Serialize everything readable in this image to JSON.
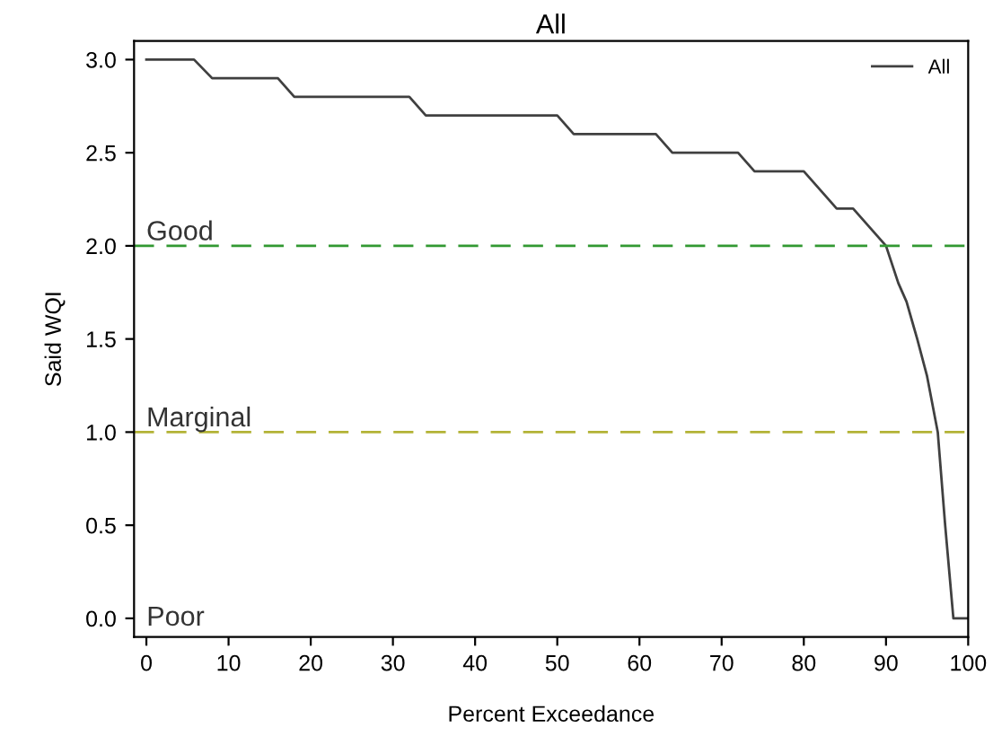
{
  "chart_data": {
    "type": "line",
    "title": "All",
    "xlabel": "Percent Exceedance",
    "ylabel": "Said WQI",
    "series": [
      {
        "name": "All",
        "color": "#404040",
        "x": [
          0,
          5.8,
          8,
          16,
          18,
          32,
          34,
          50,
          52,
          62,
          64,
          72,
          74,
          80,
          84,
          86,
          88,
          90,
          91.5,
          92.5,
          93.8,
          95,
          96.3,
          97.2,
          98.2,
          100
        ],
        "values": [
          3.0,
          3.0,
          2.9,
          2.9,
          2.8,
          2.8,
          2.7,
          2.7,
          2.6,
          2.6,
          2.5,
          2.5,
          2.4,
          2.4,
          2.2,
          2.2,
          2.1,
          2.0,
          1.8,
          1.7,
          1.5,
          1.3,
          1.0,
          0.5,
          0.0,
          0.0
        ]
      }
    ],
    "ref_lines": [
      {
        "axis": "y",
        "value": 2.0,
        "label": "Good",
        "color": "#339933",
        "line_style": "dashed"
      },
      {
        "axis": "y",
        "value": 1.0,
        "label": "Marginal",
        "color": "#b3b336",
        "line_style": "dashed"
      }
    ],
    "annotations": [
      "Poor"
    ],
    "xlim": [
      -1.5,
      100
    ],
    "ylim": [
      -0.1,
      3.1
    ],
    "xticks": [
      0,
      10,
      20,
      30,
      40,
      50,
      60,
      70,
      80,
      90,
      100
    ],
    "yticks": [
      {
        "value": 0,
        "label": "0.0"
      },
      {
        "value": 0.5,
        "label": "0.5"
      },
      {
        "value": 1,
        "label": "1.0"
      },
      {
        "value": 1.5,
        "label": "1.5"
      },
      {
        "value": 2,
        "label": "2.0"
      },
      {
        "value": 2.5,
        "label": "2.5"
      },
      {
        "value": 3,
        "label": "3.0"
      }
    ],
    "grid": false,
    "legend": "top right",
    "line_style": "solid",
    "marker": "none"
  }
}
